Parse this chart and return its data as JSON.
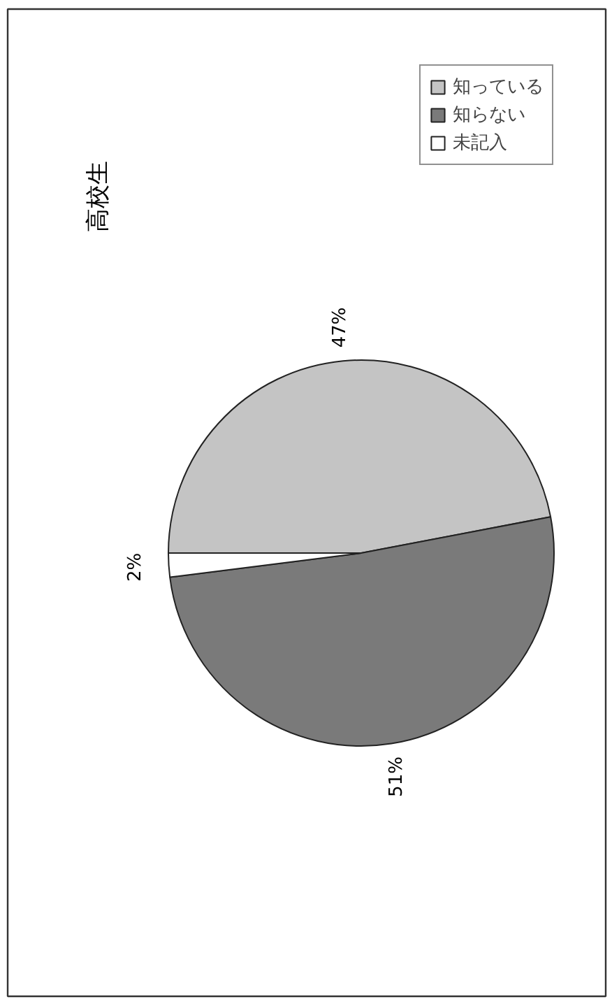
{
  "chart_data": {
    "type": "pie",
    "title": "高校生",
    "categories": [
      "知っている",
      "知らない",
      "未記入"
    ],
    "values": [
      47,
      51,
      2
    ],
    "colors": [
      "#c4c4c4",
      "#7a7a7a",
      "#ffffff"
    ],
    "data_labels": true,
    "value_labels": [
      "47%",
      "51%",
      "2%"
    ],
    "legend": "top right"
  }
}
